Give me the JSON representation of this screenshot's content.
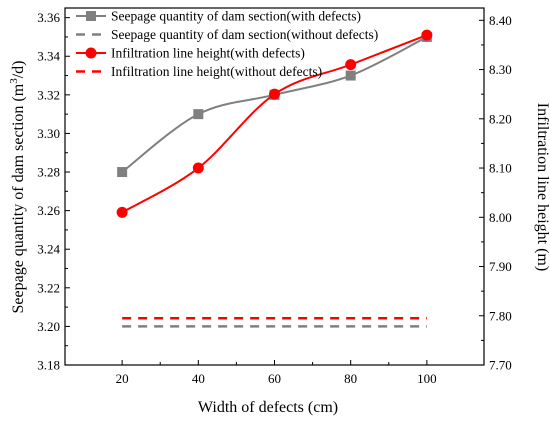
{
  "chart_data": {
    "type": "line",
    "title": "",
    "xlabel": "Width of defects (cm)",
    "ylabel_left_main": "Seepage quantity of dam section (m",
    "ylabel_left_sup": "3",
    "ylabel_left_tail": "/d)",
    "ylabel_right": "Infiltration line height (m)",
    "x": [
      20,
      40,
      60,
      80,
      100
    ],
    "x_ticks": [
      "20",
      "40",
      "60",
      "80",
      "100"
    ],
    "xlim": [
      5,
      115
    ],
    "ylim_left": [
      3.18,
      3.365
    ],
    "ylim_right": [
      7.7,
      8.425
    ],
    "y_left_ticks": [
      "3.18",
      "3.20",
      "3.22",
      "3.24",
      "3.26",
      "3.28",
      "3.30",
      "3.32",
      "3.34",
      "3.36"
    ],
    "y_right_ticks": [
      "7.70",
      "7.80",
      "7.90",
      "8.00",
      "8.10",
      "8.20",
      "8.30",
      "8.40"
    ],
    "legend_position": "top-left",
    "grid": false,
    "series": [
      {
        "name": "Seepage quantity of dam section(with defects)",
        "axis": "left",
        "style": "solid",
        "marker": "square",
        "color": "#808080",
        "values": [
          3.28,
          3.31,
          3.32,
          3.33,
          3.35
        ]
      },
      {
        "name": "Seepage quantity of dam section(without defects)",
        "axis": "left",
        "style": "dashed",
        "marker": "none",
        "color": "#808080",
        "values": [
          3.2,
          3.2,
          3.2,
          3.2,
          3.2
        ]
      },
      {
        "name": "Infiltration line height(with defects)",
        "axis": "right",
        "style": "solid",
        "marker": "circle",
        "color": "#ff0000",
        "values": [
          8.01,
          8.1,
          8.25,
          8.31,
          8.37
        ]
      },
      {
        "name": "Infiltration line height(without defects)",
        "axis": "right",
        "style": "dashed",
        "marker": "none",
        "color": "#ff0000",
        "values": [
          7.795,
          7.795,
          7.795,
          7.795,
          7.795
        ]
      }
    ]
  }
}
